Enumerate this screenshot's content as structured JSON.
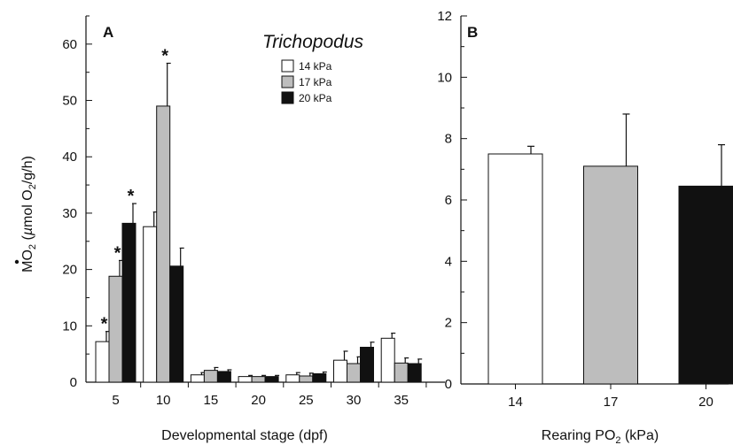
{
  "colors": {
    "14 kPa": "#ffffff",
    "17 kPa": "#bdbdbd",
    "20 kPa": "#111111"
  },
  "chart_data": [
    {
      "type": "bar",
      "panel": "A",
      "annotation": "Trichopodus",
      "xlabel": "Developmental stage (dpf)",
      "ylabel": "MO2 (µmol O2/g/h)",
      "ylim": [
        0,
        65
      ],
      "yticks": [
        0,
        10,
        20,
        30,
        40,
        50,
        60
      ],
      "legend_position": "top-right",
      "categories": [
        "5",
        "10",
        "15",
        "20",
        "25",
        "30",
        "35"
      ],
      "series": [
        {
          "name": "14 kPa",
          "values": [
            7.2,
            27.6,
            1.3,
            1.0,
            1.3,
            3.9,
            7.8
          ],
          "error": [
            1.8,
            2.6,
            0.4,
            0.2,
            0.4,
            1.6,
            0.9
          ],
          "significant": [
            true,
            false,
            false,
            false,
            false,
            false,
            false
          ]
        },
        {
          "name": "17 kPa",
          "values": [
            18.8,
            49.0,
            2.1,
            1.0,
            1.1,
            3.3,
            3.4
          ],
          "error": [
            2.8,
            7.6,
            0.5,
            0.2,
            0.5,
            1.2,
            0.9
          ],
          "significant": [
            true,
            true,
            false,
            false,
            false,
            false,
            false
          ]
        },
        {
          "name": "20 kPa",
          "values": [
            28.2,
            20.6,
            1.9,
            1.0,
            1.5,
            6.2,
            3.3
          ],
          "error": [
            3.5,
            3.2,
            0.3,
            0.2,
            0.3,
            0.9,
            0.8
          ],
          "significant": [
            true,
            false,
            false,
            false,
            false,
            false,
            false
          ]
        }
      ],
      "significance_marker": "*"
    },
    {
      "type": "bar",
      "panel": "B",
      "xlabel": "Rearing PO2 (kPa)",
      "ylim": [
        0,
        12
      ],
      "yticks": [
        0,
        2,
        4,
        6,
        8,
        10,
        12
      ],
      "categories": [
        "14",
        "17",
        "20"
      ],
      "values": [
        7.5,
        7.1,
        6.45
      ],
      "error": [
        0.25,
        1.7,
        1.35
      ]
    }
  ]
}
